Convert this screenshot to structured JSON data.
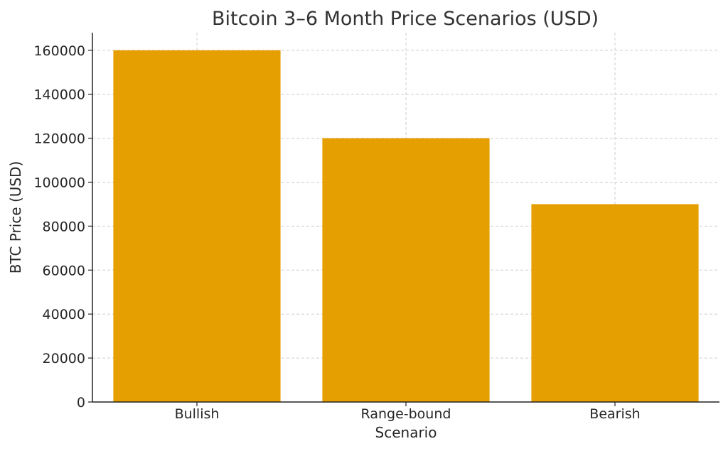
{
  "chart_data": {
    "type": "bar",
    "title": "Bitcoin 3–6 Month Price Scenarios (USD)",
    "xlabel": "Scenario",
    "ylabel": "BTC Price (USD)",
    "categories": [
      "Bullish",
      "Range-bound",
      "Bearish"
    ],
    "values": [
      160000,
      120000,
      90000
    ],
    "ylim": [
      0,
      168000
    ],
    "yticks": [
      0,
      20000,
      40000,
      60000,
      80000,
      100000,
      120000,
      140000,
      160000
    ],
    "grid": true,
    "bar_color": "#e69f00"
  }
}
